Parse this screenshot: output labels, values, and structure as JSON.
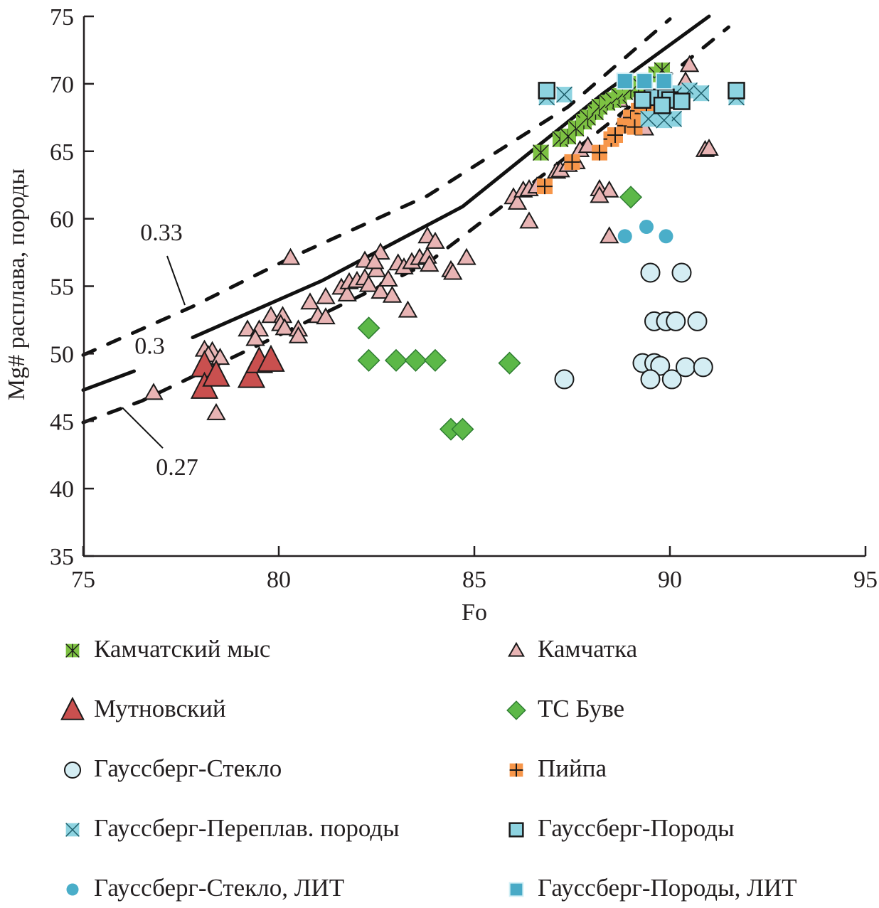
{
  "chart_data": {
    "type": "scatter",
    "title": "",
    "xlabel": "Fo",
    "ylabel": "Mg# расплава, породы",
    "xlim": [
      75,
      95
    ],
    "ylim": [
      35,
      75
    ],
    "xticks": [
      "75",
      "80",
      "85",
      "90",
      "95"
    ],
    "yticks": [
      "35",
      "40",
      "45",
      "50",
      "55",
      "60",
      "65",
      "70",
      "75"
    ],
    "grid": false,
    "legend_position": "bottom",
    "curves": [
      {
        "name": "0.33",
        "style": "dashed",
        "label": "0.33",
        "points": [
          [
            75,
            49.9
          ],
          [
            77.8,
            53.5
          ],
          [
            80.3,
            57.1
          ],
          [
            83.8,
            61.7
          ],
          [
            87.4,
            68.3
          ],
          [
            90.0,
            74.8
          ]
        ]
      },
      {
        "name": "0.3",
        "style": "solid",
        "label": "0.3",
        "segments": [
          [
            [
              75,
              47.3
            ],
            [
              76.3,
              48.7
            ]
          ],
          [
            [
              77.8,
              51.2
            ],
            [
              81.1,
              55.4
            ],
            [
              84.7,
              60.9
            ],
            [
              88.3,
              69.3
            ],
            [
              91.0,
              75.0
            ]
          ]
        ]
      },
      {
        "name": "0.27",
        "style": "dashed",
        "label": "0.27",
        "points": [
          [
            75,
            44.9
          ],
          [
            76.5,
            46.5
          ],
          [
            80.1,
            51.5
          ],
          [
            83.8,
            56.7
          ],
          [
            87.1,
            64.0
          ],
          [
            89.8,
            70.2
          ],
          [
            91.5,
            74.2
          ]
        ]
      }
    ],
    "annotations": [
      {
        "text": "0.33",
        "at": [
          77.0,
          58.4
        ],
        "pointer_to": [
          77.6,
          53.6
        ]
      },
      {
        "text": "0.3",
        "at": [
          76.7,
          50.0
        ]
      },
      {
        "text": "0.27",
        "at": [
          77.4,
          41.0
        ],
        "pointer_to": [
          76.0,
          46.0
        ]
      }
    ],
    "series": [
      {
        "name": "Камчатский мыс",
        "marker": "asterisk-square",
        "fill": "#7dc242",
        "stroke": "#1a1a1a",
        "points": [
          [
            86.7,
            64.9
          ],
          [
            87.2,
            65.9
          ],
          [
            87.4,
            66.1
          ],
          [
            87.6,
            66.7
          ],
          [
            87.8,
            67.2
          ],
          [
            87.9,
            67.5
          ],
          [
            88.1,
            67.9
          ],
          [
            88.2,
            68.3
          ],
          [
            88.4,
            68.6
          ],
          [
            88.55,
            68.8
          ],
          [
            88.7,
            69.1
          ],
          [
            88.85,
            69.4
          ],
          [
            89.0,
            69.6
          ],
          [
            89.2,
            70.0
          ],
          [
            89.65,
            70.7
          ],
          [
            89.8,
            71.0
          ]
        ]
      },
      {
        "name": "Камчатка",
        "marker": "triangle-small",
        "fill": "#e8b4b4",
        "stroke": "#1a1a1a",
        "points": [
          [
            80.3,
            57.1
          ],
          [
            76.8,
            47.1
          ],
          [
            78.4,
            45.6
          ],
          [
            78.1,
            50.3
          ],
          [
            78.3,
            50.2
          ],
          [
            78.2,
            49.9
          ],
          [
            78.5,
            49.7
          ],
          [
            79.2,
            51.8
          ],
          [
            79.5,
            51.8
          ],
          [
            79.4,
            51.1
          ],
          [
            79.8,
            52.8
          ],
          [
            80.1,
            52.8
          ],
          [
            80.05,
            52.2
          ],
          [
            80.15,
            51.9
          ],
          [
            80.5,
            51.8
          ],
          [
            80.5,
            51.3
          ],
          [
            80.8,
            53.8
          ],
          [
            81.0,
            52.8
          ],
          [
            81.2,
            52.7
          ],
          [
            81.2,
            54.2
          ],
          [
            81.6,
            54.9
          ],
          [
            81.75,
            54.4
          ],
          [
            81.8,
            55.3
          ],
          [
            82.0,
            55.4
          ],
          [
            82.2,
            56.9
          ],
          [
            82.2,
            55.6
          ],
          [
            82.3,
            55.1
          ],
          [
            82.5,
            56.2
          ],
          [
            82.6,
            57.5
          ],
          [
            82.45,
            56.8
          ],
          [
            82.6,
            54.6
          ],
          [
            82.8,
            55.5
          ],
          [
            82.9,
            54.3
          ],
          [
            83.05,
            56.7
          ],
          [
            83.2,
            56.4
          ],
          [
            83.3,
            53.2
          ],
          [
            83.4,
            56.8
          ],
          [
            83.6,
            57.1
          ],
          [
            83.8,
            58.7
          ],
          [
            83.8,
            57.2
          ],
          [
            83.85,
            56.6
          ],
          [
            84.0,
            58.3
          ],
          [
            84.4,
            56.2
          ],
          [
            84.45,
            56.0
          ],
          [
            84.8,
            57.1
          ],
          [
            86.0,
            61.6
          ],
          [
            86.1,
            61.2
          ],
          [
            86.4,
            59.8
          ],
          [
            86.25,
            62.1
          ],
          [
            86.4,
            62.2
          ],
          [
            86.6,
            62.4
          ],
          [
            87.1,
            63.5
          ],
          [
            87.2,
            63.6
          ],
          [
            87.4,
            64.0
          ],
          [
            87.6,
            64.2
          ],
          [
            87.7,
            65.1
          ],
          [
            87.9,
            65.4
          ],
          [
            88.2,
            62.2
          ],
          [
            88.45,
            62.1
          ],
          [
            88.2,
            61.7
          ],
          [
            88.45,
            58.7
          ],
          [
            89.35,
            66.7
          ],
          [
            90.5,
            71.4
          ],
          [
            90.9,
            65.1
          ],
          [
            91.0,
            65.2
          ],
          [
            90.4,
            70.2
          ],
          [
            88.7,
            68.8
          ],
          [
            88.85,
            67.5
          ]
        ]
      },
      {
        "name": "Мутновский",
        "marker": "triangle-large",
        "fill": "#c9504f",
        "stroke": "#1a1a1a",
        "points": [
          [
            78.1,
            49.1
          ],
          [
            78.1,
            47.5
          ],
          [
            78.4,
            48.4
          ],
          [
            79.3,
            48.3
          ],
          [
            79.5,
            49.4
          ],
          [
            79.8,
            49.5
          ]
        ]
      },
      {
        "name": "ТС Буве",
        "marker": "diamond",
        "fill": "#5cb848",
        "stroke": "#2e7d32",
        "points": [
          [
            82.3,
            51.9
          ],
          [
            82.3,
            49.5
          ],
          [
            83.0,
            49.5
          ],
          [
            83.5,
            49.5
          ],
          [
            84.0,
            49.5
          ],
          [
            85.9,
            49.3
          ],
          [
            84.4,
            44.4
          ],
          [
            84.7,
            44.4
          ],
          [
            89.0,
            61.6
          ]
        ]
      },
      {
        "name": "Гауссберг-Стекло",
        "marker": "circle",
        "fill": "#d4edf3",
        "stroke": "#1a1a1a",
        "points": [
          [
            87.3,
            48.1
          ],
          [
            89.5,
            56.0
          ],
          [
            90.3,
            56.0
          ],
          [
            89.6,
            52.4
          ],
          [
            89.9,
            52.4
          ],
          [
            90.15,
            52.4
          ],
          [
            90.7,
            52.4
          ],
          [
            89.3,
            49.3
          ],
          [
            89.6,
            49.3
          ],
          [
            89.75,
            49.1
          ],
          [
            89.5,
            48.1
          ],
          [
            90.05,
            48.1
          ],
          [
            90.4,
            49.0
          ],
          [
            90.85,
            49.0
          ]
        ]
      },
      {
        "name": "Пийпа",
        "marker": "plus-square",
        "fill": "#f7964a",
        "stroke": "#1a1a1a",
        "points": [
          [
            86.8,
            62.4
          ],
          [
            87.5,
            64.2
          ],
          [
            88.2,
            64.9
          ],
          [
            88.5,
            65.9
          ],
          [
            88.6,
            66.2
          ],
          [
            88.85,
            66.9
          ],
          [
            89.0,
            67.5
          ],
          [
            89.2,
            68.0
          ],
          [
            89.3,
            67.8
          ],
          [
            89.1,
            66.8
          ],
          [
            89.4,
            68.4
          ],
          [
            89.6,
            68.8
          ]
        ]
      },
      {
        "name": "Гауссберг-Переплав. породы",
        "marker": "x-square",
        "fill": "#8dd3e0",
        "stroke": "#1f5f6b",
        "points": [
          [
            86.85,
            69.0
          ],
          [
            87.3,
            69.2
          ],
          [
            90.15,
            69.3
          ],
          [
            90.5,
            69.5
          ],
          [
            90.8,
            69.3
          ],
          [
            91.7,
            69.0
          ],
          [
            89.65,
            67.4
          ],
          [
            90.1,
            67.4
          ],
          [
            89.45,
            67.4
          ],
          [
            89.85,
            67.3
          ]
        ]
      },
      {
        "name": "Гауссберг-Породы",
        "marker": "square",
        "fill": "#8dd3e0",
        "stroke": "#1a1a1a",
        "points": [
          [
            86.85,
            69.5
          ],
          [
            91.7,
            69.5
          ],
          [
            89.55,
            69.0
          ],
          [
            89.3,
            68.8
          ],
          [
            89.9,
            69.0
          ],
          [
            90.0,
            68.8
          ],
          [
            90.3,
            68.7
          ],
          [
            89.8,
            68.4
          ]
        ]
      },
      {
        "name": "Гауссберг-Стекло, ЛИТ",
        "marker": "dot",
        "fill": "#4aaec9",
        "stroke": "none",
        "points": [
          [
            88.85,
            58.7
          ],
          [
            89.4,
            59.4
          ],
          [
            89.9,
            58.7
          ]
        ]
      },
      {
        "name": "Гауссберг-Породы, ЛИТ",
        "marker": "square-solid",
        "fill": "#48aac6",
        "stroke": "#cfeef5",
        "points": [
          [
            88.85,
            70.2
          ],
          [
            89.35,
            70.2
          ],
          [
            89.85,
            70.2
          ]
        ]
      }
    ]
  },
  "legend": {
    "items": [
      {
        "label": "Камчатский мыс",
        "marker": "asterisk-square",
        "column": "left"
      },
      {
        "label": "Камчатка",
        "marker": "triangle-small",
        "column": "right"
      },
      {
        "label": "Мутновский",
        "marker": "triangle-large",
        "column": "left"
      },
      {
        "label": "ТС Буве",
        "marker": "diamond",
        "column": "right"
      },
      {
        "label": "Гауссберг-Стекло",
        "marker": "circle",
        "column": "left"
      },
      {
        "label": "Пийпа",
        "marker": "plus-square",
        "column": "right"
      },
      {
        "label": "Гауссберг-Переплав. породы",
        "marker": "x-square",
        "column": "left"
      },
      {
        "label": "Гауссберг-Породы",
        "marker": "square",
        "column": "right"
      },
      {
        "label": "Гауссберг-Стекло, ЛИТ",
        "marker": "dot",
        "column": "left"
      },
      {
        "label": "Гауссберг-Породы, ЛИТ",
        "marker": "square-solid",
        "column": "right"
      }
    ]
  }
}
